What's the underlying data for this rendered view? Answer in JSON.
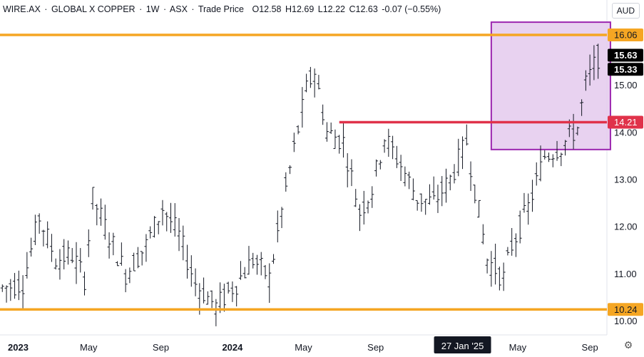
{
  "legend": {
    "symbol": "WIRE.AX",
    "sep1": "·",
    "name": "GLOBAL X COPPER",
    "sep2": "·",
    "interval": "1W",
    "sep3": "·",
    "exchange": "ASX",
    "sep4": "·",
    "price_type": "Trade Price",
    "open": "O12.58",
    "high": "H12.69",
    "low": "L12.22",
    "close": "C12.63",
    "change": "-0.07 (−0.55%)"
  },
  "currency_button": "AUD",
  "colors": {
    "support_resistance": "#f5a623",
    "breakout_line": "#e0324a",
    "zone_fill": "#e6cdee",
    "zone_border": "#9c27b0",
    "bars": "#131722"
  },
  "chart_data": {
    "type": "ohlc",
    "interval": "weekly",
    "ylim": [
      9.7,
      16.8
    ],
    "y_ticks": [
      "10.00",
      "11.00",
      "12.00",
      "13.00",
      "14.00",
      "15.00"
    ],
    "x_ticks": [
      {
        "label": "2023",
        "date": "2023-01-01"
      },
      {
        "label": "May",
        "date": "2023-05-01"
      },
      {
        "label": "Sep",
        "date": "2023-09-01"
      },
      {
        "label": "2024",
        "date": "2024-01-01"
      },
      {
        "label": "May",
        "date": "2024-05-01"
      },
      {
        "label": "Sep",
        "date": "2024-09-01"
      },
      {
        "label": "May",
        "date": "2025-05-01"
      },
      {
        "label": "Sep",
        "date": "2025-09-01"
      }
    ],
    "crosshair_date_label": {
      "label": "27 Jan '25",
      "date": "2025-01-27"
    },
    "x_range": [
      "2022-12-01",
      "2025-09-30"
    ],
    "price_path": [
      [
        "2022-12-05",
        10.7
      ],
      [
        "2023-01-09",
        10.8
      ],
      [
        "2023-02-06",
        12.2
      ],
      [
        "2023-03-06",
        11.3
      ],
      [
        "2023-04-03",
        11.4
      ],
      [
        "2023-04-24",
        10.9
      ],
      [
        "2023-05-08",
        12.6
      ],
      [
        "2023-06-05",
        11.8
      ],
      [
        "2023-07-03",
        11.0
      ],
      [
        "2023-08-07",
        11.6
      ],
      [
        "2023-09-04",
        12.4
      ],
      [
        "2023-10-02",
        11.8
      ],
      [
        "2023-10-30",
        10.8
      ],
      [
        "2023-12-04",
        10.3
      ],
      [
        "2024-01-08",
        10.8
      ],
      [
        "2024-02-05",
        11.3
      ],
      [
        "2024-03-04",
        10.9
      ],
      [
        "2024-04-01",
        12.8
      ],
      [
        "2024-05-06",
        14.9
      ],
      [
        "2024-05-20",
        15.3
      ],
      [
        "2024-06-10",
        14.0
      ],
      [
        "2024-07-08",
        13.8
      ],
      [
        "2024-08-05",
        12.3
      ],
      [
        "2024-08-26",
        12.8
      ],
      [
        "2024-09-16",
        13.9
      ],
      [
        "2024-10-14",
        13.3
      ],
      [
        "2024-11-11",
        12.6
      ],
      [
        "2024-12-09",
        12.5
      ],
      [
        "2025-01-06",
        13.0
      ],
      [
        "2025-02-03",
        13.8
      ],
      [
        "2025-03-10",
        11.3
      ],
      [
        "2025-04-07",
        10.9
      ],
      [
        "2025-04-21",
        11.6
      ],
      [
        "2025-05-19",
        12.4
      ],
      [
        "2025-06-16",
        13.5
      ],
      [
        "2025-07-14",
        13.7
      ],
      [
        "2025-08-11",
        14.1
      ],
      [
        "2025-08-25",
        15.0
      ],
      [
        "2025-09-15",
        15.6
      ]
    ],
    "horizontal_lines": [
      {
        "price": 16.06,
        "label": "16.06",
        "color": "#f5a623",
        "from": "2022-12-01"
      },
      {
        "price": 10.24,
        "label": "10.24",
        "color": "#f5a623",
        "from": "2022-12-01"
      },
      {
        "price": 14.21,
        "label": "14.21",
        "color": "#e0324a",
        "from": "2024-07-01"
      }
    ],
    "zone": {
      "from": "2025-03-17",
      "to": "2025-10-06",
      "y_low": 13.63,
      "y_high": 16.33
    },
    "price_labels": [
      {
        "label": "15.63",
        "price": 15.63
      },
      {
        "label": "15.33",
        "price": 15.33
      }
    ]
  }
}
